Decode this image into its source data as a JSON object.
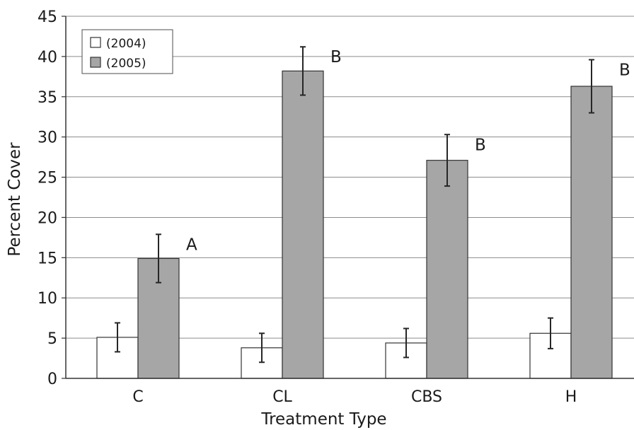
{
  "chart_data": {
    "type": "bar",
    "title": "",
    "xlabel": "Treatment Type",
    "ylabel": "Percent Cover",
    "categories": [
      "C",
      "CL",
      "CBS",
      "H"
    ],
    "ylim": [
      0,
      45
    ],
    "yticks": [
      0,
      5,
      10,
      15,
      20,
      25,
      30,
      35,
      40,
      45
    ],
    "grid": true,
    "legend_position": "top-left",
    "series": [
      {
        "name": "(2004)",
        "color": "#ffffff",
        "values": [
          5.1,
          3.8,
          4.4,
          5.6
        ],
        "errors": [
          1.8,
          1.8,
          1.8,
          1.9
        ]
      },
      {
        "name": "(2005)",
        "color": "#a6a6a6",
        "values": [
          14.9,
          38.2,
          27.1,
          36.3
        ],
        "errors": [
          3.0,
          3.0,
          3.2,
          3.3
        ]
      }
    ],
    "annotations": [
      "A",
      "B",
      "B",
      "B"
    ]
  }
}
